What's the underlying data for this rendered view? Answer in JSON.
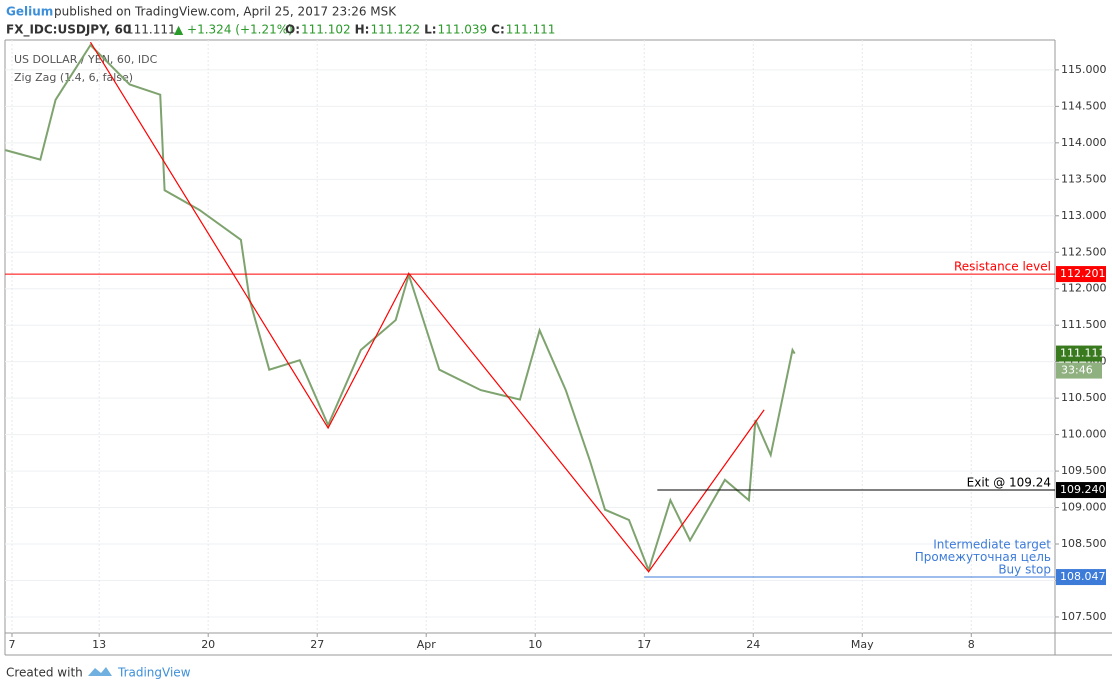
{
  "header": {
    "author": "Gelium",
    "published": "published on TradingView.com, April 25, 2017 23:26 MSK",
    "symbol": "FX_IDC:USDJPY, 60",
    "last": "111.111",
    "change": "▲ +1.324 (+1.21%)",
    "ohlc": [
      {
        "label": "O:",
        "value": "111.102"
      },
      {
        "label": "H:",
        "value": "111.122"
      },
      {
        "label": "L:",
        "value": "111.039"
      },
      {
        "label": "C:",
        "value": "111.111"
      }
    ]
  },
  "footer": {
    "created": "Created with",
    "brand": "TradingView"
  },
  "chart_data": {
    "type": "line",
    "title": "US DOLLAR / YEN, 60, IDC",
    "subtitle": "Zig Zag (1.4, 6, false)",
    "price": {
      "color": "#7ea36e",
      "x": [
        -0.3,
        1.3,
        2.0,
        3.6,
        5.4,
        6.8,
        7.0,
        8.6,
        10.5,
        10.9,
        11.8,
        13.2,
        14.5,
        16.0,
        17.6,
        18.2,
        19.6,
        21.5,
        23.3,
        24.2,
        25.4,
        26.5,
        27.2,
        28.3,
        29.2,
        30.2,
        31.1,
        32.7,
        33.8,
        34.1,
        34.8,
        35.8,
        35.9
      ],
      "values": [
        113.9,
        113.77,
        114.59,
        115.34,
        114.8,
        114.66,
        113.35,
        113.08,
        112.67,
        111.85,
        110.89,
        111.02,
        110.13,
        111.16,
        111.57,
        112.19,
        110.89,
        110.61,
        110.48,
        111.43,
        110.61,
        109.65,
        108.97,
        108.83,
        108.14,
        109.1,
        108.55,
        109.38,
        109.1,
        110.2,
        109.72,
        111.16,
        111.11
      ]
    },
    "zigzag": {
      "color": "#ff0000",
      "x": [
        3.6,
        14.5,
        18.2,
        29.2,
        34.5
      ],
      "values": [
        115.38,
        110.09,
        112.21,
        108.12,
        110.34
      ]
    },
    "levels": [
      {
        "value": 112.201,
        "tag": "112.201",
        "color": "#ff0000",
        "texts": [
          "Resistance level"
        ]
      },
      {
        "value": 109.24,
        "tag": "109.240",
        "color": "#000000",
        "start": 29.6,
        "texts": [
          "Exit @ 109.24"
        ]
      },
      {
        "value": 108.047,
        "tag": "108.047",
        "color": "#3d7bd9",
        "start": 29.0,
        "texts": [
          "Intermediate target",
          "Промежуточная цель",
          "Buy stop"
        ]
      }
    ],
    "last_price": {
      "value": 111.111,
      "label": "111.111",
      "countdown": "33:46",
      "color": "#3a7a1f"
    },
    "xlim": [
      -0.32,
      47.84
    ],
    "xticks": [
      {
        "value": 0,
        "label": "7"
      },
      {
        "value": 4,
        "label": "13"
      },
      {
        "value": 9,
        "label": "20"
      },
      {
        "value": 14,
        "label": "27"
      },
      {
        "value": 19,
        "label": "Apr"
      },
      {
        "value": 24,
        "label": "10"
      },
      {
        "value": 29,
        "label": "17"
      },
      {
        "value": 34,
        "label": "24"
      },
      {
        "value": 39,
        "label": "May"
      },
      {
        "value": 44,
        "label": "8"
      }
    ],
    "ylim": [
      107.28,
      115.41
    ],
    "yticks": [
      {
        "value": 107.5,
        "label": "107.500"
      },
      {
        "value": 108,
        "label": "108.000"
      },
      {
        "value": 108.5,
        "label": "108.500"
      },
      {
        "value": 109,
        "label": "109.000"
      },
      {
        "value": 109.5,
        "label": "109.500"
      },
      {
        "value": 110,
        "label": "110.000"
      },
      {
        "value": 110.5,
        "label": "110.500"
      },
      {
        "value": 111,
        "label": "111.000"
      },
      {
        "value": 111.5,
        "label": "111.500"
      },
      {
        "value": 112,
        "label": "112.000"
      },
      {
        "value": 112.5,
        "label": "112.500"
      },
      {
        "value": 113,
        "label": "113.000"
      },
      {
        "value": 113.5,
        "label": "113.500"
      },
      {
        "value": 114,
        "label": "114.000"
      },
      {
        "value": 114.5,
        "label": "114.500"
      },
      {
        "value": 115,
        "label": "115.000"
      }
    ],
    "grid": true
  }
}
